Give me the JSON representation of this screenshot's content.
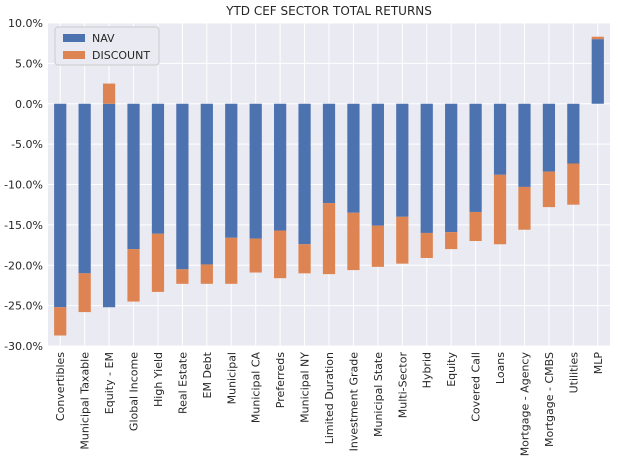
{
  "chart_data": {
    "type": "bar",
    "stacked": true,
    "title": "YTD CEF SECTOR TOTAL RETURNS",
    "xlabel": "",
    "ylabel": "",
    "ylim": [
      -30,
      10
    ],
    "yticks": [
      -30,
      -25,
      -20,
      -15,
      -10,
      -5,
      0,
      5,
      10
    ],
    "ytick_labels": [
      "-30.0%",
      "-25.0%",
      "-20.0%",
      "-15.0%",
      "-10.0%",
      "-5.0%",
      "0.0%",
      "5.0%",
      "10.0%"
    ],
    "grid": true,
    "legend_position": "top-left",
    "categories": [
      "Convertibles",
      "Municipal Taxable",
      "Equity - EM",
      "Global Income",
      "High Yield",
      "Real Estate",
      "EM Debt",
      "Municipal",
      "Municipal CA",
      "Preferreds",
      "Municipal NY",
      "Limited Duration",
      "Investment Grade",
      "Municipal State",
      "Multi-Sector",
      "Hybrid",
      "Equity",
      "Covered Call",
      "Loans",
      "Mortgage - Agency",
      "Mortgage - CMBS",
      "Utilities",
      "MLP"
    ],
    "series": [
      {
        "name": "NAV",
        "color": "#4c72b0",
        "values": [
          -25.2,
          -21.0,
          -25.2,
          -18.0,
          -16.1,
          -20.5,
          -19.9,
          -16.6,
          -16.7,
          -15.7,
          -17.4,
          -12.3,
          -13.5,
          -15.1,
          -14.0,
          -16.0,
          -15.9,
          -13.4,
          -8.8,
          -10.3,
          -8.4,
          -7.4,
          8.0
        ]
      },
      {
        "name": "DISCOUNT",
        "color": "#dd8452",
        "values": [
          -3.5,
          -4.8,
          2.5,
          -6.5,
          -7.2,
          -1.8,
          -2.4,
          -5.7,
          -4.2,
          -5.9,
          -3.6,
          -8.8,
          -7.1,
          -5.1,
          -5.8,
          -3.1,
          -2.1,
          -3.6,
          -8.6,
          -5.3,
          -4.4,
          -5.1,
          0.3
        ]
      }
    ]
  }
}
